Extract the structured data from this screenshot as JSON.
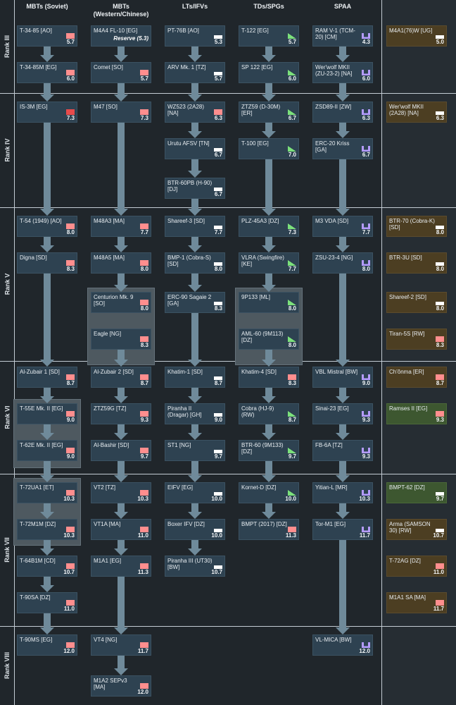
{
  "columns": [
    "MBTs (Soviet)",
    "MBTs\n(Western/Chinese)",
    "LTs/IFVs",
    "TDs/SPGs",
    "SPAA",
    ""
  ],
  "ranks": [
    "Rank III",
    "Rank IV",
    "Rank V",
    "Rank VI",
    "Rank VII",
    "Rank VIII"
  ],
  "colors": {
    "mbt": "#ff8e8e",
    "mbt_red": "#e84b4b",
    "light": "#ffffff",
    "td": "#7be07b",
    "spaa": "#b59cff"
  },
  "vehicles": [
    {
      "name": "T-34-85 [AO]",
      "br": "5.7",
      "type": "mbt"
    },
    {
      "name": "M4A4 FL-10 [EG]",
      "br": "",
      "type": "mbt",
      "note": "Reserve (5.3)"
    },
    {
      "name": "PT-76B [AO]",
      "br": "5.3",
      "type": "light"
    },
    {
      "name": "T-122 [EG]",
      "br": "5.7",
      "type": "td"
    },
    {
      "name": "RAM V-1 (TCM-20) [CM]",
      "br": "4.3",
      "type": "spaa"
    },
    {
      "name": "M4A1(76)W [UG]",
      "br": "5.0",
      "type": "light",
      "prem": true
    },
    {
      "name": "T-34-85M [EG]",
      "br": "6.0",
      "type": "mbt"
    },
    {
      "name": "Comet [SO]",
      "br": "5.7",
      "type": "mbt"
    },
    {
      "name": "ARV Mk. 1 [TZ]",
      "br": "5.7",
      "type": "light"
    },
    {
      "name": "SP 122 [EG]",
      "br": "6.0",
      "type": "td"
    },
    {
      "name": "Wer'wolf MKII (ZU-23-2) [NA]",
      "br": "6.0",
      "type": "spaa"
    },
    {
      "name": "IS-3M [EG]",
      "br": "7.3",
      "type": "mbt_red"
    },
    {
      "name": "M47 [SO]",
      "br": "7.3",
      "type": "mbt"
    },
    {
      "name": "WZ523 (2A28) [NA]",
      "br": "6.3",
      "type": "mbt"
    },
    {
      "name": "ZTZ59 (D-30M) [ER]",
      "br": "6.7",
      "type": "td"
    },
    {
      "name": "ZSD89-II [ZW]",
      "br": "6.3",
      "type": "spaa"
    },
    {
      "name": "Wer'wolf MKII (2A28) [NA]",
      "br": "6.3",
      "type": "light",
      "prem": true
    },
    {
      "name": "Urutu AFSV [TN]",
      "br": "6.7",
      "type": "light"
    },
    {
      "name": "T-100 [EG]",
      "br": "7.0",
      "type": "td"
    },
    {
      "name": "ERC-20 Kriss [GA]",
      "br": "6.7",
      "type": "spaa"
    },
    {
      "name": "BTR-60PB (H-90) [DJ]",
      "br": "6.7",
      "type": "light"
    },
    {
      "name": "T-54 (1949) [AO]",
      "br": "8.0",
      "type": "mbt"
    },
    {
      "name": "M48A3 [MA]",
      "br": "7.7",
      "type": "mbt"
    },
    {
      "name": "Shareef-3 [SD]",
      "br": "7.7",
      "type": "light"
    },
    {
      "name": "PLZ-45A3 [DZ]",
      "br": "7.3",
      "type": "td"
    },
    {
      "name": "M3 VDA [SD]",
      "br": "7.7",
      "type": "spaa"
    },
    {
      "name": "BTR-70 (Cobra-K) [SD]",
      "br": "8.0",
      "type": "light",
      "prem": true
    },
    {
      "name": "Digna [SD]",
      "br": "8.3",
      "type": "mbt"
    },
    {
      "name": "M48A5 [MA]",
      "br": "8.0",
      "type": "mbt"
    },
    {
      "name": "BMP-1 (Cobra-S) [SD]",
      "br": "8.0",
      "type": "light"
    },
    {
      "name": "VLRA (Swingfire) [KE]",
      "br": "7.7",
      "type": "td"
    },
    {
      "name": "ZSU-23-4 [NG]",
      "br": "8.0",
      "type": "spaa"
    },
    {
      "name": "BTR-3U [SD]",
      "br": "8.0",
      "type": "light",
      "prem": true
    },
    {
      "name": "Centurion Mk. 9 [SO]",
      "br": "8.0",
      "type": "mbt"
    },
    {
      "name": "ERC-90 Sagaie 2 [GA]",
      "br": "8.3",
      "type": "light"
    },
    {
      "name": "9P133 [ML]",
      "br": "8.0",
      "type": "td"
    },
    {
      "name": "Shareef-2 [SD]",
      "br": "8.0",
      "type": "light",
      "prem": true
    },
    {
      "name": "Eagle [NG]",
      "br": "8.3",
      "type": "mbt"
    },
    {
      "name": "AML-60 (9M113) [DZ]",
      "br": "8.0",
      "type": "td"
    },
    {
      "name": "Tiran-5S [RW]",
      "br": "8.3",
      "type": "mbt",
      "prem": true
    },
    {
      "name": "Al-Zubair 1 [SD]",
      "br": "8.7",
      "type": "mbt"
    },
    {
      "name": "Al-Zubair 2 [SD]",
      "br": "8.7",
      "type": "mbt"
    },
    {
      "name": "Khatim-1 [SD]",
      "br": "8.7",
      "type": "light"
    },
    {
      "name": "Khatim-4 [SD]",
      "br": "8.3",
      "type": "mbt"
    },
    {
      "name": "VBL Mistral [BW]",
      "br": "9.0",
      "type": "spaa"
    },
    {
      "name": "Ch'ŏnma [ER]",
      "br": "8.7",
      "type": "mbt",
      "prem": true
    },
    {
      "name": "T-55E Mk. II [EG]",
      "br": "9.0",
      "type": "mbt"
    },
    {
      "name": "ZTZ59G [TZ]",
      "br": "9.3",
      "type": "mbt"
    },
    {
      "name": "Piranha II (Dragar) [GH]",
      "br": "9.0",
      "type": "light"
    },
    {
      "name": "Cobra (HJ-9) (RW)",
      "br": "8.7",
      "type": "td"
    },
    {
      "name": "Sinai-23 [EG]",
      "br": "9.3",
      "type": "spaa"
    },
    {
      "name": "Ramses II [EG]",
      "br": "9.3",
      "type": "mbt",
      "prem": true,
      "green": true
    },
    {
      "name": "T-62E Mk. II [EG]",
      "br": "9.0",
      "type": "mbt"
    },
    {
      "name": "Al-Bashir [SD]",
      "br": "9.7",
      "type": "mbt"
    },
    {
      "name": "ST1 [NG]",
      "br": "9.7",
      "type": "light"
    },
    {
      "name": "BTR-60 (9M133) [DZ]",
      "br": "9.7",
      "type": "td"
    },
    {
      "name": "FB-6A [TZ]",
      "br": "9.3",
      "type": "spaa"
    },
    {
      "name": "T-72UA1 [ET]",
      "br": "10.3",
      "type": "mbt"
    },
    {
      "name": "VT2 [TZ]",
      "br": "10.3",
      "type": "mbt"
    },
    {
      "name": "EIFV [EG]",
      "br": "10.0",
      "type": "light"
    },
    {
      "name": "Kornet-D [DZ]",
      "br": "10.0",
      "type": "td"
    },
    {
      "name": "Yitian-L [MR]",
      "br": "10.3",
      "type": "spaa"
    },
    {
      "name": "BMPT-62 [DZ]",
      "br": "9.7",
      "type": "light",
      "prem": true,
      "green": true
    },
    {
      "name": "T-72M1M [DZ]",
      "br": "10.3",
      "type": "mbt"
    },
    {
      "name": "VT1A [MA]",
      "br": "11.0",
      "type": "mbt"
    },
    {
      "name": "Boxer IFV [DZ]",
      "br": "10.0",
      "type": "light"
    },
    {
      "name": "BMPT (2017) [DZ]",
      "br": "11.3",
      "type": "mbt"
    },
    {
      "name": "Tor-M1 [EG]",
      "br": "11.7",
      "type": "spaa"
    },
    {
      "name": "Arma (SAMSON 30) [RW]",
      "br": "10.7",
      "type": "light",
      "prem": true
    },
    {
      "name": "T-64B1M [CD]",
      "br": "10.7",
      "type": "mbt"
    },
    {
      "name": "M1A1 [EG]",
      "br": "11.3",
      "type": "mbt"
    },
    {
      "name": "Piranha III (UT30) [BW]",
      "br": "10.7",
      "type": "light"
    },
    {
      "name": "T-72AG [DZ]",
      "br": "11.0",
      "type": "mbt",
      "prem": true
    },
    {
      "name": "T-90SA [DZ]",
      "br": "11.0",
      "type": "mbt"
    },
    {
      "name": "M1A1 SA [MA]",
      "br": "11.7",
      "type": "mbt",
      "prem": true
    },
    {
      "name": "T-90MS [EG]",
      "br": "12.0",
      "type": "mbt"
    },
    {
      "name": "VT4 [NG]",
      "br": "11.7",
      "type": "mbt"
    },
    {
      "name": "VL-MICA [BW]",
      "br": "12.0",
      "type": "spaa"
    },
    {
      "name": "M1A2 SEPv3 [MA]",
      "br": "12.0",
      "type": "mbt"
    }
  ]
}
